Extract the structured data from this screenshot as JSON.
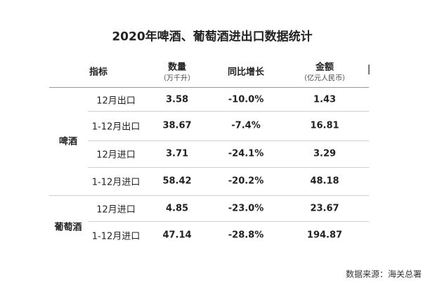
{
  "title": "2020年啤酒、葡萄酒进出口数据统计",
  "table": {
    "headers": [
      {
        "label": "指标"
      },
      {
        "label": "数量",
        "unit": "（万千升）"
      },
      {
        "label": "同比增长"
      },
      {
        "label": "金额",
        "unit": "（亿元人民币）"
      }
    ],
    "groups": [
      {
        "name": "啤酒",
        "rows": [
          [
            "12月出口",
            "3.58",
            "-10.0%",
            "1.43"
          ],
          [
            "1-12月出口",
            "38.67",
            "-7.4%",
            "16.81"
          ],
          [
            "12月进口",
            "3.71",
            "-24.1%",
            "3.29"
          ],
          [
            "1-12月进口",
            "58.42",
            "-20.2%",
            "48.18"
          ]
        ]
      },
      {
        "name": "葡萄酒",
        "rows": [
          [
            "12月进口",
            "4.85",
            "-23.0%",
            "23.67"
          ],
          [
            "1-12月进口",
            "47.14",
            "-28.8%",
            "194.87"
          ]
        ]
      }
    ]
  },
  "source": "数据来源：海关总署"
}
